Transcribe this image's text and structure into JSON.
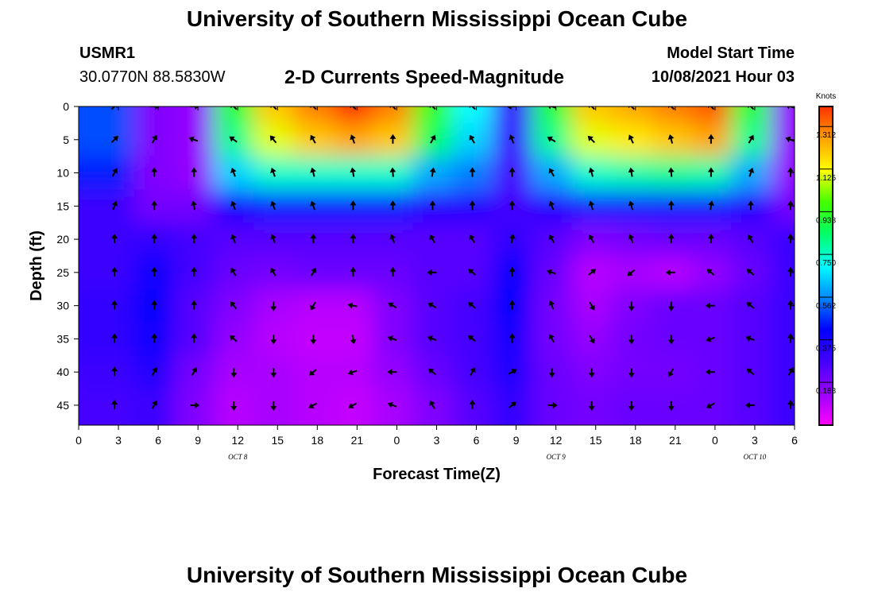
{
  "page_title": "University of Southern Mississippi Ocean Cube",
  "footer_title": "University of Southern Mississippi Ocean Cube",
  "station": {
    "id": "USMR1",
    "coords": "30.0770N  88.5830W"
  },
  "model": {
    "label": "Model Start Time",
    "start": "10/08/2021 Hour 03"
  },
  "chart_data": {
    "type": "heatmap",
    "title": "2-D Currents Speed-Magnitude",
    "xlabel": "Forecast Time(Z)",
    "ylabel": "Depth (ft)",
    "x_ticks": [
      "0",
      "3",
      "6",
      "9",
      "12",
      "15",
      "18",
      "21",
      "0",
      "3",
      "6",
      "9",
      "12",
      "15",
      "18",
      "21",
      "0",
      "3",
      "6"
    ],
    "x_range_hours": [
      0,
      54
    ],
    "y_ticks": [
      "0",
      "5",
      "10",
      "15",
      "20",
      "25",
      "30",
      "35",
      "40",
      "45"
    ],
    "y_range_ft": [
      0,
      48
    ],
    "date_labels": [
      {
        "text": "OCT 8",
        "hour": 12
      },
      {
        "text": "OCT 9",
        "hour": 36
      },
      {
        "text": "OCT 10",
        "hour": 51
      }
    ],
    "colorbar": {
      "unit": "Knots",
      "ticks": [
        "1.312",
        "1.125",
        "0.938",
        "0.750",
        "0.562",
        "0.375",
        "0.188"
      ],
      "tick_values": [
        1.312,
        1.125,
        0.938,
        0.75,
        0.562,
        0.375,
        0.188
      ],
      "range": [
        0,
        1.4
      ],
      "colors": [
        "#ff00ff",
        "#9a00ff",
        "#4400ff",
        "#0000ff",
        "#0088ff",
        "#00ffff",
        "#00ff66",
        "#44ff00",
        "#ffff00",
        "#ffa000",
        "#ff3000"
      ]
    },
    "arrow_hours": [
      2.7,
      5.7,
      8.7,
      11.7,
      14.7,
      17.7,
      20.7,
      23.7,
      26.7,
      29.7,
      32.7,
      35.7,
      38.7,
      41.7,
      44.7,
      47.7,
      50.7,
      53.7
    ],
    "arrow_depths": [
      0,
      5,
      10,
      15,
      20,
      25,
      30,
      35,
      40,
      45
    ],
    "speed_grid": [
      [
        0.5,
        0.18,
        0.15,
        0.9,
        1.2,
        1.3,
        1.4,
        1.3,
        0.95,
        0.7,
        0.3,
        0.9,
        1.2,
        1.25,
        1.3,
        1.35,
        0.9,
        0.15
      ],
      [
        0.5,
        0.18,
        0.15,
        0.8,
        1.1,
        1.2,
        1.25,
        1.2,
        0.85,
        0.65,
        0.3,
        0.8,
        1.1,
        1.15,
        1.2,
        1.25,
        0.8,
        0.15
      ],
      [
        0.45,
        0.18,
        0.15,
        0.65,
        0.75,
        0.75,
        0.75,
        0.75,
        0.6,
        0.55,
        0.28,
        0.6,
        0.75,
        0.78,
        0.8,
        0.78,
        0.6,
        0.15
      ],
      [
        0.3,
        0.2,
        0.2,
        0.4,
        0.45,
        0.45,
        0.45,
        0.45,
        0.35,
        0.35,
        0.28,
        0.35,
        0.45,
        0.45,
        0.45,
        0.45,
        0.35,
        0.2
      ],
      [
        0.3,
        0.32,
        0.28,
        0.25,
        0.25,
        0.25,
        0.25,
        0.25,
        0.25,
        0.25,
        0.32,
        0.25,
        0.18,
        0.2,
        0.22,
        0.22,
        0.25,
        0.3
      ],
      [
        0.3,
        0.4,
        0.28,
        0.22,
        0.2,
        0.22,
        0.22,
        0.22,
        0.25,
        0.25,
        0.42,
        0.22,
        0.1,
        0.12,
        0.1,
        0.15,
        0.22,
        0.3
      ],
      [
        0.32,
        0.42,
        0.25,
        0.18,
        0.12,
        0.1,
        0.1,
        0.18,
        0.25,
        0.28,
        0.42,
        0.2,
        0.12,
        0.18,
        0.22,
        0.22,
        0.25,
        0.3
      ],
      [
        0.32,
        0.4,
        0.25,
        0.15,
        0.1,
        0.08,
        0.08,
        0.18,
        0.25,
        0.28,
        0.38,
        0.2,
        0.15,
        0.2,
        0.22,
        0.22,
        0.25,
        0.3
      ],
      [
        0.3,
        0.35,
        0.2,
        0.12,
        0.12,
        0.1,
        0.1,
        0.15,
        0.22,
        0.28,
        0.35,
        0.22,
        0.18,
        0.2,
        0.2,
        0.22,
        0.25,
        0.3
      ],
      [
        0.28,
        0.3,
        0.18,
        0.1,
        0.12,
        0.1,
        0.08,
        0.12,
        0.18,
        0.25,
        0.32,
        0.22,
        0.2,
        0.22,
        0.22,
        0.22,
        0.25,
        0.3
      ]
    ],
    "direction_grid_deg": [
      [
        315,
        0,
        0,
        225,
        225,
        225,
        225,
        225,
        225,
        225,
        180,
        200,
        225,
        225,
        225,
        225,
        225,
        200
      ],
      [
        315,
        300,
        200,
        215,
        230,
        240,
        250,
        270,
        300,
        240,
        250,
        210,
        225,
        245,
        255,
        270,
        300,
        200
      ],
      [
        300,
        270,
        270,
        250,
        250,
        255,
        260,
        265,
        280,
        270,
        270,
        240,
        255,
        260,
        265,
        270,
        290,
        270
      ],
      [
        290,
        270,
        260,
        250,
        250,
        250,
        270,
        270,
        270,
        270,
        270,
        250,
        255,
        255,
        270,
        280,
        270,
        270
      ],
      [
        270,
        270,
        270,
        250,
        250,
        270,
        270,
        250,
        240,
        240,
        280,
        240,
        240,
        250,
        270,
        270,
        240,
        270
      ],
      [
        270,
        270,
        270,
        240,
        240,
        300,
        270,
        270,
        180,
        220,
        270,
        200,
        320,
        140,
        180,
        220,
        220,
        270
      ],
      [
        270,
        270,
        270,
        230,
        90,
        120,
        190,
        210,
        210,
        220,
        270,
        250,
        60,
        90,
        90,
        180,
        220,
        270
      ],
      [
        270,
        270,
        270,
        220,
        90,
        90,
        80,
        200,
        200,
        220,
        270,
        240,
        60,
        90,
        90,
        160,
        200,
        270
      ],
      [
        270,
        300,
        300,
        90,
        90,
        140,
        160,
        180,
        220,
        300,
        330,
        90,
        90,
        90,
        120,
        180,
        220,
        300
      ],
      [
        270,
        300,
        0,
        90,
        90,
        150,
        150,
        200,
        240,
        270,
        320,
        0,
        90,
        90,
        90,
        150,
        180,
        270
      ]
    ]
  }
}
